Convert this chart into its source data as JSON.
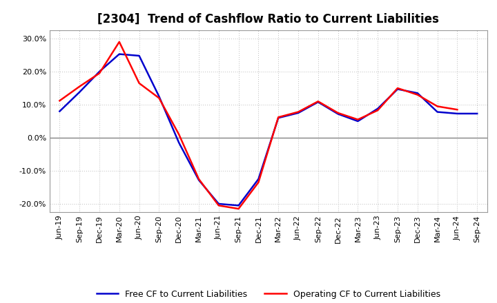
{
  "title": "[2304]  Trend of Cashflow Ratio to Current Liabilities",
  "x_labels": [
    "Jun-19",
    "Sep-19",
    "Dec-19",
    "Mar-20",
    "Jun-20",
    "Sep-20",
    "Dec-20",
    "Mar-21",
    "Jun-21",
    "Sep-21",
    "Dec-21",
    "Mar-22",
    "Jun-22",
    "Sep-22",
    "Dec-22",
    "Mar-23",
    "Jun-23",
    "Sep-23",
    "Dec-23",
    "Mar-24",
    "Jun-24",
    "Sep-24"
  ],
  "operating_cf": [
    0.112,
    0.155,
    0.195,
    0.29,
    0.165,
    0.12,
    0.01,
    -0.125,
    -0.205,
    -0.215,
    -0.135,
    0.062,
    0.078,
    0.11,
    0.075,
    0.055,
    0.083,
    0.15,
    0.13,
    0.095,
    0.085,
    null
  ],
  "free_cf": [
    0.08,
    0.138,
    0.2,
    0.253,
    0.248,
    0.125,
    -0.015,
    -0.128,
    -0.2,
    -0.205,
    -0.125,
    0.06,
    0.075,
    0.108,
    0.072,
    0.05,
    0.088,
    0.147,
    0.135,
    0.078,
    0.073,
    0.073
  ],
  "ylim": [
    -0.225,
    0.325
  ],
  "yticks": [
    -0.2,
    -0.1,
    0.0,
    0.1,
    0.2,
    0.3
  ],
  "operating_color": "#ff0000",
  "free_color": "#0000cc",
  "background_color": "#ffffff",
  "plot_bg_color": "#ffffff",
  "grid_color": "#bbbbbb",
  "zero_line_color": "#777777",
  "line_width": 1.8,
  "title_fontsize": 12,
  "tick_fontsize": 8,
  "legend_fontsize": 9
}
